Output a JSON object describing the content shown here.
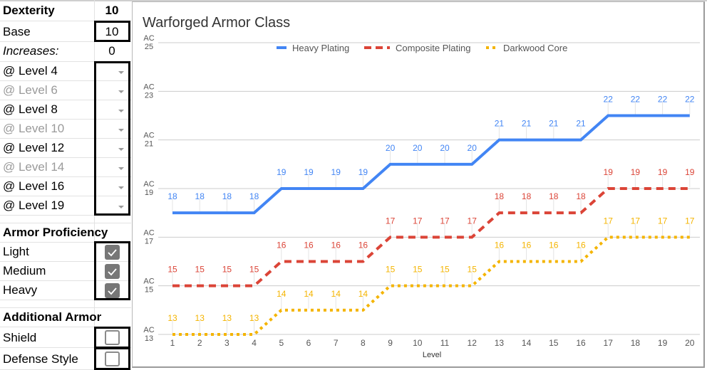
{
  "sheet": {
    "dexterity": {
      "label": "Dexterity",
      "value": "10"
    },
    "base": {
      "label": "Base",
      "value": "10"
    },
    "increases": {
      "label": "Increases:",
      "value": "0"
    },
    "levels": [
      {
        "label": "@ Level 4",
        "enabled": true
      },
      {
        "label": "@ Level 6",
        "enabled": false
      },
      {
        "label": "@ Level 8",
        "enabled": true
      },
      {
        "label": "@ Level 10",
        "enabled": false
      },
      {
        "label": "@ Level 12",
        "enabled": true
      },
      {
        "label": "@ Level 14",
        "enabled": false
      },
      {
        "label": "@ Level 16",
        "enabled": true
      },
      {
        "label": "@ Level 19",
        "enabled": true
      }
    ],
    "armor_proficiency": {
      "heading": "Armor Proficiency",
      "items": [
        {
          "label": "Light",
          "checked": true
        },
        {
          "label": "Medium",
          "checked": true
        },
        {
          "label": "Heavy",
          "checked": true
        }
      ]
    },
    "additional_armor": {
      "heading": "Additional Armor",
      "items": [
        {
          "label": "Shield",
          "checked": false
        },
        {
          "label": "Defense Style",
          "checked": false
        }
      ]
    }
  },
  "chart_data": {
    "type": "line",
    "title": "Warforged Armor Class",
    "xlabel": "Level",
    "ylabel": "",
    "x": [
      1,
      2,
      3,
      4,
      5,
      6,
      7,
      8,
      9,
      10,
      11,
      12,
      13,
      14,
      15,
      16,
      17,
      18,
      19,
      20
    ],
    "y_ticks": [
      "AC 13",
      "AC 15",
      "AC 17",
      "AC 19",
      "AC 21",
      "AC 23",
      "AC 25"
    ],
    "ylim": [
      13,
      25
    ],
    "grid": true,
    "legend_position": "top",
    "series": [
      {
        "name": "Heavy Plating",
        "color": "#4285f4",
        "style": "solid",
        "values": [
          18,
          18,
          18,
          18,
          19,
          19,
          19,
          19,
          20,
          20,
          20,
          20,
          21,
          21,
          21,
          21,
          22,
          22,
          22,
          22
        ]
      },
      {
        "name": "Composite Plating",
        "color": "#db4437",
        "style": "dashed",
        "values": [
          15,
          15,
          15,
          15,
          16,
          16,
          16,
          16,
          17,
          17,
          17,
          17,
          18,
          18,
          18,
          18,
          19,
          19,
          19,
          19
        ]
      },
      {
        "name": "Darkwood Core",
        "color": "#f4b400",
        "style": "dotted",
        "values": [
          13,
          13,
          13,
          13,
          14,
          14,
          14,
          14,
          15,
          15,
          15,
          15,
          16,
          16,
          16,
          16,
          17,
          17,
          17,
          17
        ]
      }
    ]
  }
}
